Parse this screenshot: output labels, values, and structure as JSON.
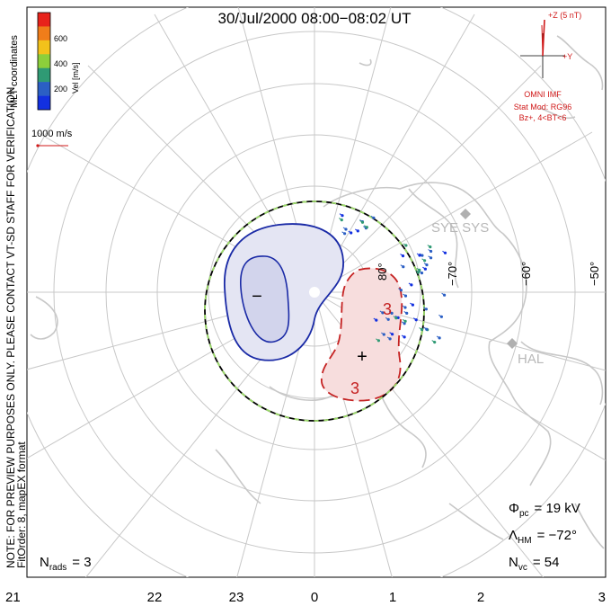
{
  "title": "30/Jul/2000 08:00−08:02 UT",
  "side_notes": {
    "coordinates": "MLT coordinates",
    "preview": "NOTE: FOR PREVIEW PURPOSES ONLY. PLEASE CONTACT VT-SD STAFF FOR VERIFICATION.",
    "fitorder": "FitOrder: 8, mapEX format"
  },
  "legend": {
    "colorbar_label": "Vel [m/s]",
    "ticks": [
      "600",
      "400",
      "200"
    ],
    "colors": [
      "#e8231b",
      "#f07d1a",
      "#f2c21b",
      "#8ccf3b",
      "#2f9a74",
      "#2b5fc4",
      "#1230e0"
    ],
    "scale_label": "1000 m/s"
  },
  "imf": {
    "z_label": "+Z (5 nT)",
    "y_label": "+Y",
    "source": "OMNI IMF",
    "model": "Stat Mod: RG96",
    "condition": "Bz+, 4<BT<6"
  },
  "stations": [
    {
      "name": "SYE SYS"
    },
    {
      "name": "HAL"
    }
  ],
  "lat_labels": [
    "80°",
    "−70°",
    "−60°",
    "−50°"
  ],
  "mlt_labels": [
    "21",
    "22",
    "23",
    "0",
    "1",
    "2",
    "3"
  ],
  "contours": {
    "minus_symbol": "−",
    "plus_symbol": "+",
    "level_labels": [
      "3",
      "3"
    ]
  },
  "stats": {
    "phi_symbol": "Φ",
    "phi_sub": "pc",
    "phi_value": "= 19 kV",
    "lambda_symbol": "Λ",
    "lambda_sub": "HM",
    "lambda_value": "= −72°",
    "nvc_symbol": "N",
    "nvc_sub": "vc",
    "nvc_value": "= 54",
    "nrads_symbol": "N",
    "nrads_sub": "rads",
    "nrads_value": "= 3"
  },
  "chart_data": {
    "type": "scatter",
    "title": "30/Jul/2000 08:00−08:02 UT",
    "projection": "polar, MLT coordinates",
    "x_axis_ticks": [
      "21",
      "22",
      "23",
      "0",
      "1",
      "2",
      "3"
    ],
    "latitude_ticks": [
      "80°",
      "−70°",
      "−60°",
      "−50°"
    ],
    "heppner_maynard_boundary_deg": -72,
    "cross_polar_cap_potential_kV": 19,
    "n_vectors": 54,
    "n_radars": 3,
    "velocity_colorbar_ticks_ms": [
      200,
      400,
      600
    ]
  }
}
